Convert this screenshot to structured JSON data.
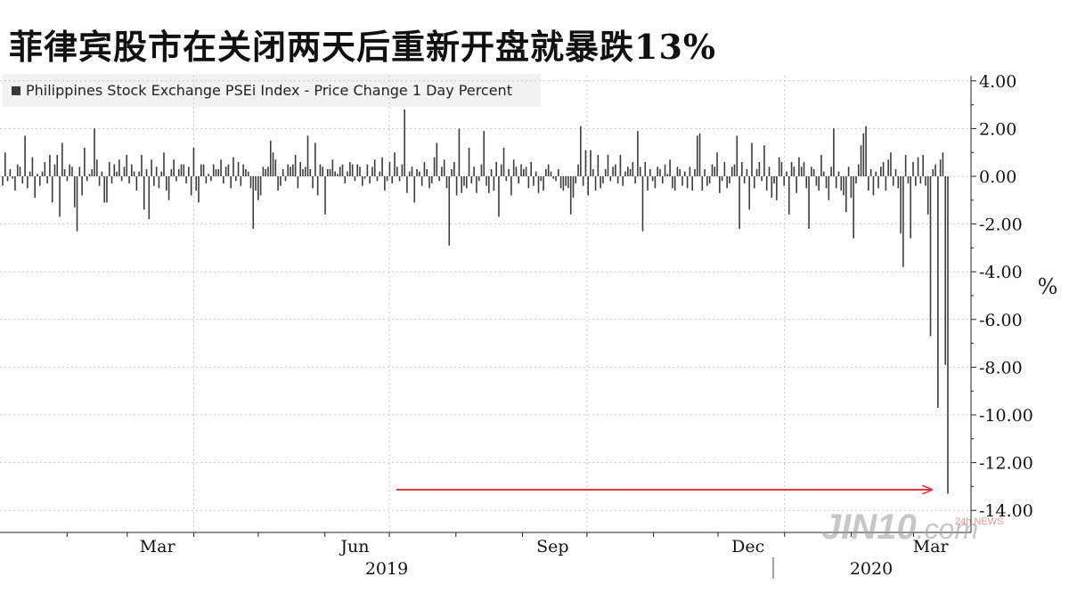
{
  "title": "菲律宾股市在关闭两天后重新开盘就暴跌13%",
  "legend": {
    "label": "Philippines Stock Exchange PSEi Index - Price Change 1 Day Percent"
  },
  "watermark": {
    "brand": "JIN10",
    "suffix": ".com",
    "badge": "24h NEWS"
  },
  "colors": {
    "bars": "#3c3c3c",
    "arrow": "#e8334a",
    "grid": "#c8c8c8"
  },
  "chart_data": {
    "type": "bar",
    "title": "菲律宾股市在关闭两天后重新开盘就暴跌13%",
    "ylabel": "%",
    "ylim": [
      -14,
      4.5
    ],
    "yticks": [
      4,
      2,
      0,
      -2,
      -4,
      -6,
      -8,
      -10,
      -12,
      -14
    ],
    "ytick_labels": [
      "4.00",
      "2.00",
      "0.00",
      "-2.00",
      "-4.00",
      "-6.00",
      "-8.00",
      "-10.00",
      "-12.00",
      "-14.00"
    ],
    "grid": true,
    "legend_position": "top-left",
    "x_month_labels": [
      "Mar",
      "Jun",
      "Sep",
      "Dec",
      "Mar"
    ],
    "x_year_labels": [
      "2019",
      "2020"
    ],
    "x_start": "2019-01-02",
    "x_end": "2020-03-17",
    "series": [
      {
        "name": "Philippines Stock Exchange PSEi Index - Price Change 1 Day Percent",
        "values": [
          -0.4,
          1.0,
          -0.2,
          0.3,
          -0.1,
          -0.6,
          0.5,
          0.4,
          -0.3,
          1.7,
          -0.5,
          0.2,
          0.8,
          -0.9,
          0.1,
          -0.4,
          0.2,
          0.6,
          -0.3,
          0.9,
          -1.1,
          0.5,
          0.9,
          -1.7,
          1.4,
          0.3,
          -0.2,
          0.5,
          0.4,
          -1.3,
          -2.3,
          0.4,
          -0.8,
          1.2,
          -0.2,
          0.1,
          0.3,
          2.0,
          0.7,
          -0.4,
          0.2,
          -1.1,
          -1.1,
          0.6,
          -0.3,
          0.5,
          0.2,
          0.7,
          -0.2,
          0.4,
          0.9,
          -0.3,
          0.5,
          0.2,
          -0.6,
          0.2,
          0.9,
          -1.4,
          0.3,
          -1.8,
          0.7,
          -0.4,
          0.4,
          -0.5,
          0.2,
          1.0,
          -0.6,
          -1.0,
          0.3,
          0.7,
          -0.2,
          0.3,
          0.5,
          0.5,
          -0.3,
          0.4,
          -0.8,
          1.2,
          -0.6,
          -1.1,
          0.5,
          0.5,
          -0.3,
          0.1,
          -0.2,
          0.5,
          0.3,
          0.3,
          0.7,
          -0.3,
          0.4,
          0.5,
          -0.5,
          0.8,
          -0.2,
          0.6,
          -0.4,
          0.5,
          0.3,
          0.2,
          -0.5,
          -2.2,
          -0.6,
          -1.0,
          -0.8,
          0.4,
          0.3,
          0.4,
          1.5,
          1.0,
          0.7,
          -0.6,
          -0.4,
          0.3,
          -0.2,
          0.5,
          0.4,
          0.5,
          0.9,
          -0.5,
          0.6,
          0.3,
          0.4,
          1.7,
          0.3,
          -0.5,
          1.4,
          -0.8,
          0.5,
          0.4,
          -1.6,
          0.3,
          0.3,
          0.7,
          0.2,
          0.1,
          0.4,
          0.5,
          -0.3,
          0.2,
          0.6,
          0.5,
          -0.2,
          0.5,
          0.4,
          -0.4,
          -0.1,
          0.5,
          -0.3,
          0.4,
          0.7,
          -0.2,
          0.2,
          0.8,
          -0.6,
          -0.2,
          0.6,
          -0.3,
          1.0,
          0.4,
          -0.2,
          0.5,
          2.8,
          -0.7,
          0.2,
          0.4,
          -1.1,
          0.3,
          0.2,
          -0.4,
          0.6,
          0.3,
          -0.5,
          -0.3,
          0.8,
          1.4,
          -0.2,
          0.4,
          0.7,
          -0.5,
          -2.9,
          0.3,
          0.6,
          -0.8,
          2.0,
          -0.7,
          -0.4,
          -0.5,
          1.2,
          -0.3,
          0.4,
          -0.7,
          -0.2,
          0.5,
          1.9,
          -0.4,
          -0.7,
          0.3,
          -0.6,
          0.6,
          -1.7,
          0.5,
          1.2,
          -0.2,
          0.3,
          -0.8,
          0.7,
          0.4,
          -0.3,
          0.5,
          0.3,
          0.4,
          -0.5,
          0.6,
          -0.4,
          0.2,
          -0.7,
          -0.2,
          -0.6,
          0.3,
          0.5,
          0.2,
          -0.1,
          -0.2,
          0.3,
          -0.5,
          -0.6,
          -0.4,
          -0.5,
          -1.6,
          -0.9,
          -0.3,
          0.5,
          2.1,
          -0.4,
          1.1,
          -0.8,
          1.1,
          0.3,
          -0.6,
          0.9,
          -0.5,
          -0.3,
          0.3,
          0.9,
          -0.2,
          0.4,
          0.5,
          -0.3,
          0.9,
          -0.4,
          0.2,
          0.4,
          0.3,
          0.6,
          -0.3,
          1.9,
          0.4,
          -2.3,
          0.6,
          -0.6,
          0.3,
          -0.2,
          -0.5,
          0.4,
          0.3,
          -0.3,
          0.5,
          0.1,
          0.7,
          -0.5,
          -0.6,
          0.4,
          0.3,
          -0.4,
          0.2,
          -0.5,
          0.4,
          -0.6,
          0.3,
          1.7,
          1.8,
          -0.6,
          0.3,
          -0.4,
          -0.3,
          0.5,
          0.4,
          1.0,
          -0.7,
          -0.2,
          0.6,
          -0.5,
          -0.3,
          0.4,
          0.5,
          1.7,
          -2.2,
          0.6,
          -0.3,
          0.3,
          -1.4,
          1.4,
          -0.5,
          0.3,
          0.6,
          -0.2,
          1.3,
          -0.6,
          0.4,
          -0.9,
          -0.3,
          -1.0,
          0.8,
          0.6,
          -0.4,
          0.2,
          -1.6,
          0.6,
          0.4,
          -0.7,
          0.8,
          0.4,
          0.6,
          -0.5,
          -2.2,
          0.4,
          0.3,
          -0.4,
          -0.6,
          0.9,
          0.2,
          -0.5,
          -1.0,
          0.4,
          2.0,
          -0.5,
          0.2,
          -0.6,
          -0.8,
          -1.5,
          0.4,
          -0.9,
          -2.6,
          -0.3,
          0.5,
          1.3,
          1.8,
          2.1,
          -0.6,
          0.3,
          -0.8,
          0.2,
          -0.5,
          0.4,
          0.6,
          -0.6,
          0.7,
          1.0,
          -0.4,
          0.3,
          -0.5,
          -2.4,
          -3.8,
          0.9,
          -0.3,
          -2.6,
          0.6,
          -0.4,
          0.8,
          -0.3,
          0.9,
          -0.4,
          -1.6,
          -6.7,
          0.3,
          0.5,
          -9.7,
          0.7,
          1.0,
          -7.9,
          -13.3
        ]
      }
    ],
    "annotations": [
      "red arrow pointing to the last bar (-13.3%)"
    ]
  }
}
